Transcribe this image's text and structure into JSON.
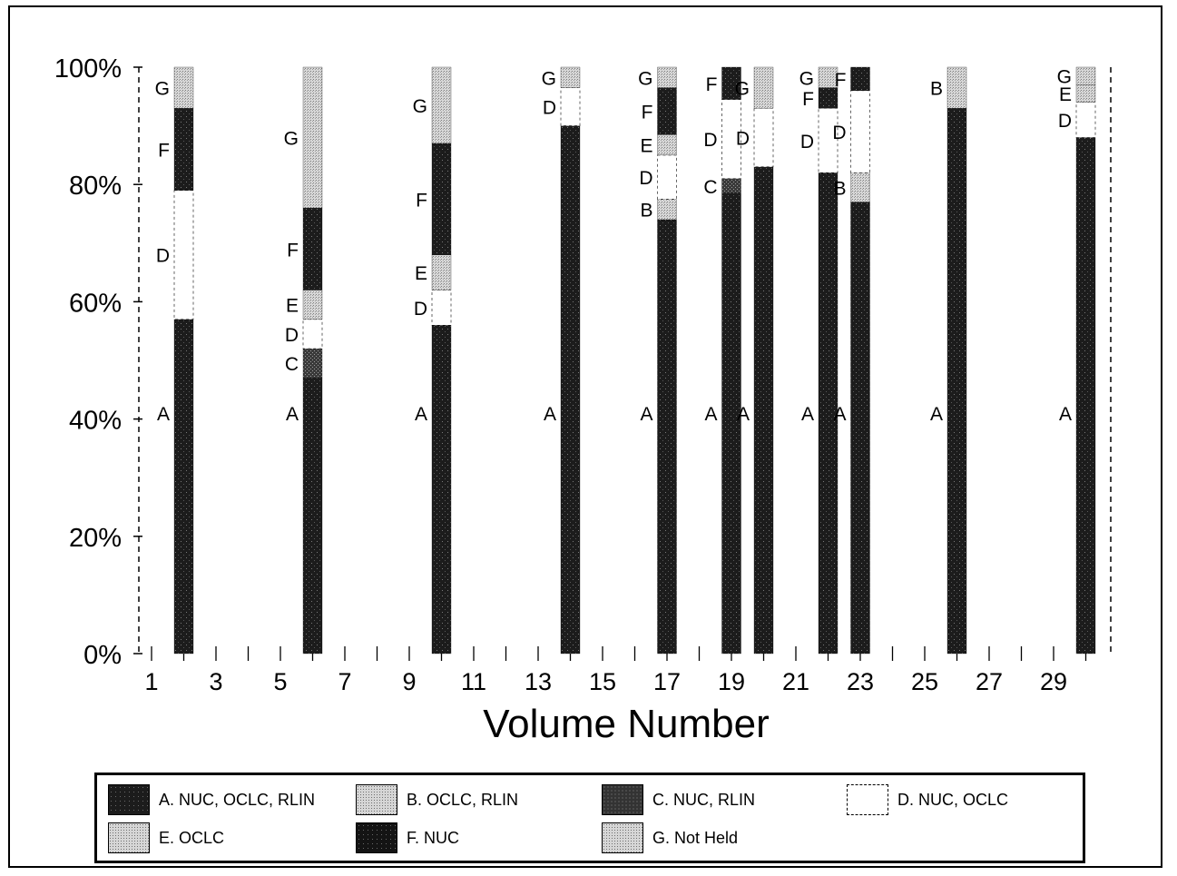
{
  "chart_data": {
    "type": "bar",
    "stacked": true,
    "xlabel": "Volume Number",
    "ylabel": "",
    "ylim": [
      0,
      100
    ],
    "y_ticks": [
      "0%",
      "20%",
      "40%",
      "60%",
      "80%",
      "100%"
    ],
    "x_ticks": [
      "1",
      "3",
      "5",
      "7",
      "9",
      "11",
      "13",
      "15",
      "17",
      "19",
      "21",
      "23",
      "25",
      "27",
      "29"
    ],
    "xlim": [
      1,
      30
    ],
    "grid": false,
    "legend_position": "bottom",
    "series": [
      {
        "key": "A",
        "name": "A. NUC, OCLC, RLIN",
        "color": "#1c1c1c",
        "pattern": "dark"
      },
      {
        "key": "B",
        "name": "B. OCLC, RLIN",
        "color": "#bdbdbd",
        "pattern": "light"
      },
      {
        "key": "C",
        "name": "C. NUC, RLIN",
        "color": "#5a5a5a",
        "pattern": "mid"
      },
      {
        "key": "D",
        "name": "D. NUC, OCLC",
        "color": "#ffffff",
        "pattern": "white"
      },
      {
        "key": "E",
        "name": "E. OCLC",
        "color": "#b0b0b0",
        "pattern": "light"
      },
      {
        "key": "F",
        "name": "F. NUC",
        "color": "#141414",
        "pattern": "dark"
      },
      {
        "key": "G",
        "name": "G. Not Held",
        "color": "#c4c4c4",
        "pattern": "light"
      }
    ],
    "bars": [
      {
        "volume": 2,
        "segments": [
          {
            "key": "A",
            "value": 57
          },
          {
            "key": "D",
            "value": 22
          },
          {
            "key": "F",
            "value": 14
          },
          {
            "key": "G",
            "value": 7
          }
        ]
      },
      {
        "volume": 6,
        "segments": [
          {
            "key": "A",
            "value": 47
          },
          {
            "key": "C",
            "value": 5
          },
          {
            "key": "D",
            "value": 5
          },
          {
            "key": "E",
            "value": 5
          },
          {
            "key": "F",
            "value": 14
          },
          {
            "key": "G",
            "value": 24
          }
        ]
      },
      {
        "volume": 10,
        "segments": [
          {
            "key": "A",
            "value": 56
          },
          {
            "key": "D",
            "value": 6
          },
          {
            "key": "E",
            "value": 6
          },
          {
            "key": "F",
            "value": 19
          },
          {
            "key": "G",
            "value": 13
          }
        ]
      },
      {
        "volume": 14,
        "segments": [
          {
            "key": "A",
            "value": 90
          },
          {
            "key": "D",
            "value": 6.5
          },
          {
            "key": "G",
            "value": 3.5
          }
        ]
      },
      {
        "volume": 17,
        "segments": [
          {
            "key": "A",
            "value": 74
          },
          {
            "key": "B",
            "value": 3.5
          },
          {
            "key": "D",
            "value": 7.5
          },
          {
            "key": "E",
            "value": 3.5
          },
          {
            "key": "F",
            "value": 8
          },
          {
            "key": "G",
            "value": 3.5
          }
        ]
      },
      {
        "volume": 19,
        "segments": [
          {
            "key": "A",
            "value": 78.5
          },
          {
            "key": "C",
            "value": 2.5
          },
          {
            "key": "D",
            "value": 13.5
          },
          {
            "key": "F",
            "value": 5.5
          }
        ]
      },
      {
        "volume": 20,
        "segments": [
          {
            "key": "A",
            "value": 83
          },
          {
            "key": "D",
            "value": 10
          },
          {
            "key": "G",
            "value": 7
          }
        ]
      },
      {
        "volume": 22,
        "segments": [
          {
            "key": "A",
            "value": 82
          },
          {
            "key": "D",
            "value": 11
          },
          {
            "key": "F",
            "value": 3.5
          },
          {
            "key": "G",
            "value": 3.5
          }
        ]
      },
      {
        "volume": 23,
        "segments": [
          {
            "key": "A",
            "value": 77
          },
          {
            "key": "B",
            "value": 5
          },
          {
            "key": "D",
            "value": 14
          },
          {
            "key": "F",
            "value": 4
          }
        ]
      },
      {
        "volume": 26,
        "segments": [
          {
            "key": "A",
            "value": 93
          },
          {
            "key": "B",
            "value": 7
          }
        ]
      },
      {
        "volume": 30,
        "segments": [
          {
            "key": "A",
            "value": 88
          },
          {
            "key": "D",
            "value": 6
          },
          {
            "key": "E",
            "value": 3
          },
          {
            "key": "G",
            "value": 3
          }
        ]
      }
    ]
  }
}
